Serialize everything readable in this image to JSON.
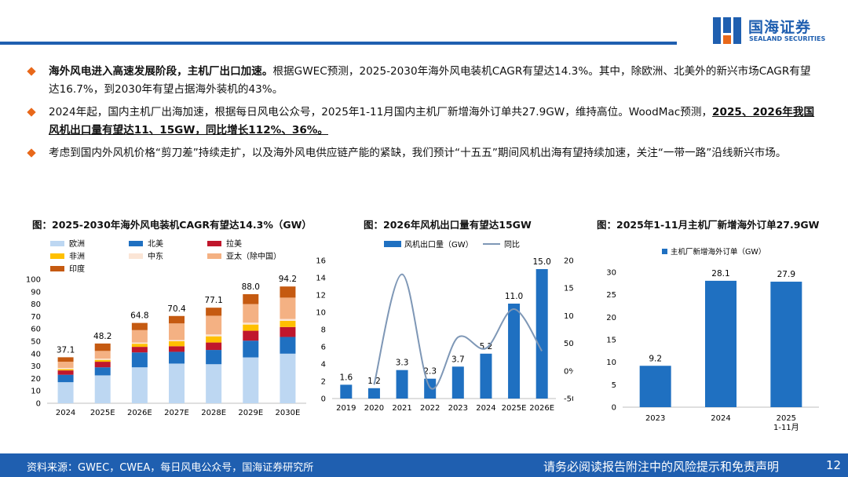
{
  "header": {
    "logo_cn": "国海证券",
    "logo_en": "SEALAND SECURITIES"
  },
  "bullets": [
    {
      "bold": "海外风电进入高速发展阶段，主机厂出口加速。",
      "text": "根据GWEC预测，2025-2030年海外风电装机CAGR有望达14.3%。其中，除欧洲、北美外的新兴市场CAGR有望达16.7%，到2030年有望占据海外装机的43%。",
      "underline": ""
    },
    {
      "bold": "",
      "text": "2024年起，国内主机厂出海加速，根据每日风电公众号，2025年1-11月国内主机厂新增海外订单共27.9GW，维持高位。WoodMac预测，",
      "underline": "2025、2026年我国风机出口量有望达11、15GW，同比增长112%、36%。"
    },
    {
      "bold": "",
      "text": "考虑到国内外风机价格“剪刀差”持续走扩，以及海外风电供应链产能的紧缺，我们预计“十五五”期间风机出海有望持续加速，关注“一带一路”沿线新兴市场。",
      "underline": ""
    }
  ],
  "chart_data": [
    {
      "type": "bar",
      "stacked": true,
      "title": "图：2025-2030年海外风电装机CAGR有望达14.3%（GW）",
      "categories": [
        "2024",
        "2025E",
        "2026E",
        "2027E",
        "2028E",
        "2029E",
        "2030E"
      ],
      "totals": [
        "37.1",
        "48.2",
        "64.8",
        "70.4",
        "77.1",
        "88.0",
        "94.2"
      ],
      "ylim": [
        0,
        100
      ],
      "yticks": [
        0,
        10,
        20,
        30,
        40,
        50,
        60,
        70,
        80,
        90,
        100
      ],
      "legend_position": "top",
      "series": [
        {
          "name": "欧洲",
          "color": "#bdd7f2",
          "values": [
            17.0,
            22.5,
            29.0,
            32.0,
            31.5,
            37.0,
            40.0
          ]
        },
        {
          "name": "北美",
          "color": "#1f70c1",
          "values": [
            6.0,
            6.5,
            12.0,
            9.5,
            11.5,
            13.5,
            13.5
          ]
        },
        {
          "name": "拉美",
          "color": "#c0172c",
          "values": [
            3.5,
            4.5,
            4.5,
            4.5,
            6.0,
            8.0,
            8.0
          ]
        },
        {
          "name": "非洲",
          "color": "#ffc000",
          "values": [
            1.0,
            1.5,
            2.5,
            4.0,
            5.0,
            5.0,
            5.0
          ]
        },
        {
          "name": "中东",
          "color": "#fbe5d6",
          "values": [
            1.0,
            1.0,
            1.0,
            1.0,
            1.5,
            1.5,
            1.5
          ]
        },
        {
          "name": "亚太（除中国）",
          "color": "#f4b183",
          "values": [
            5.0,
            6.2,
            10.0,
            13.4,
            15.1,
            15.0,
            17.2
          ]
        },
        {
          "name": "印度",
          "color": "#c55a11",
          "values": [
            3.6,
            6.0,
            5.8,
            6.0,
            6.5,
            8.0,
            9.0
          ]
        }
      ]
    },
    {
      "type": "bar+line",
      "title": "图：2026年风机出口量有望达15GW",
      "categories": [
        "2019",
        "2020",
        "2021",
        "2022",
        "2023",
        "2024",
        "2025E",
        "2026E"
      ],
      "ylim": [
        0,
        16
      ],
      "yticks": [
        0,
        2,
        4,
        6,
        8,
        10,
        12,
        14,
        16
      ],
      "y2lim": [
        -50,
        200
      ],
      "y2ticks": [
        "-50%",
        "0%",
        "50%",
        "100%",
        "150%",
        "200%"
      ],
      "legend_position": "top",
      "series": [
        {
          "name": "风机出口量（GW）",
          "color": "#1f70c1",
          "values": [
            1.6,
            1.2,
            3.3,
            2.3,
            3.7,
            5.2,
            11.0,
            15.0
          ],
          "labels": [
            "1.6",
            "1.2",
            "3.3",
            "2.3",
            "3.7",
            "5.2",
            "11.0",
            "15.0"
          ]
        },
        {
          "name": "同比",
          "color": "#7e97b6",
          "values": [
            null,
            -25,
            175,
            -30,
            61,
            41,
            112,
            36
          ]
        }
      ]
    },
    {
      "type": "bar",
      "title": "图：2025年1-11月主机厂新增海外订单27.9GW",
      "categories": [
        "2023",
        "2024",
        "2025"
      ],
      "category_sublabels": [
        "",
        "",
        "1-11月"
      ],
      "ylim": [
        0,
        30
      ],
      "yticks": [
        0,
        5,
        10,
        15,
        20,
        25,
        30
      ],
      "legend_position": "top",
      "series": [
        {
          "name": "主机厂新增海外订单（GW）",
          "color": "#1f70c1",
          "values": [
            9.2,
            28.1,
            27.9
          ],
          "labels": [
            "9.2",
            "28.1",
            "27.9"
          ]
        }
      ]
    }
  ],
  "footer": {
    "source": "资料来源：GWEC，CWEA，每日风电公众号，国海证券研究所",
    "disclaimer": "请务必阅读报告附注中的风险提示和免责声明",
    "page": "12"
  }
}
